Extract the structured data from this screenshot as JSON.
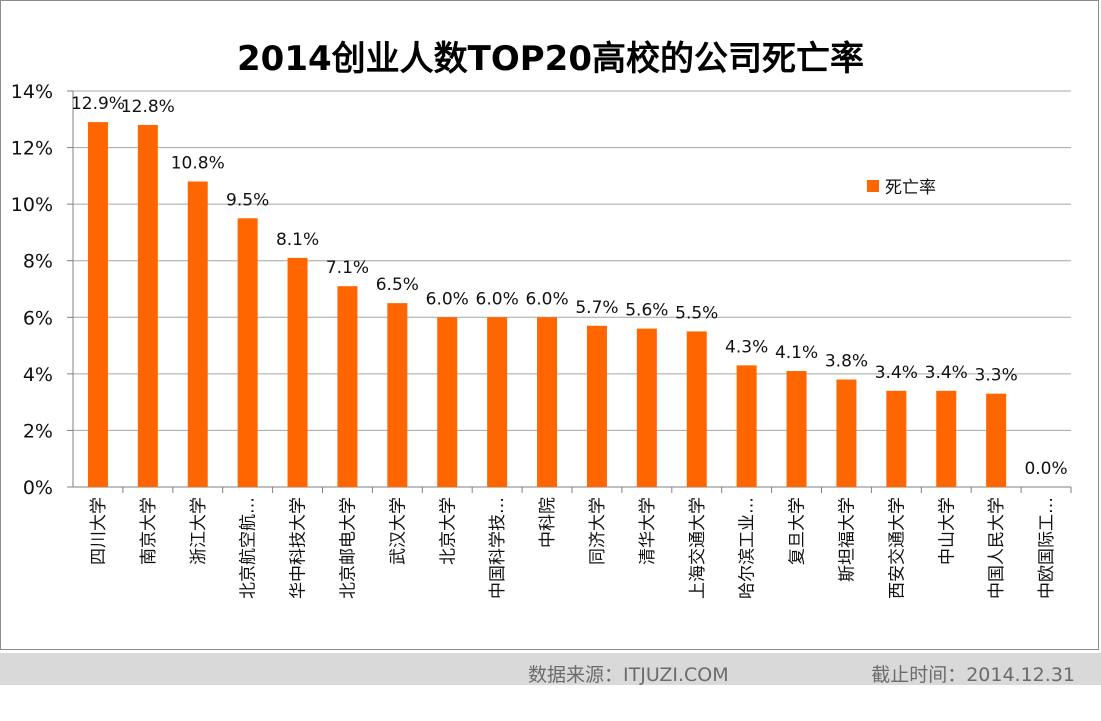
{
  "chart_data": {
    "type": "bar",
    "title": "2014创业人数TOP20高校的公司死亡率",
    "xlabel": "",
    "ylabel": "",
    "ylim": [
      0,
      14
    ],
    "y_ticks": [
      "0%",
      "2%",
      "4%",
      "6%",
      "8%",
      "10%",
      "12%",
      "14%"
    ],
    "y_tick_values": [
      0,
      2,
      4,
      6,
      8,
      10,
      12,
      14
    ],
    "grid": true,
    "legend_position": "right",
    "series": [
      {
        "name": "死亡率",
        "values": [
          12.9,
          12.8,
          10.8,
          9.5,
          8.1,
          7.1,
          6.5,
          6.0,
          6.0,
          6.0,
          5.7,
          5.6,
          5.5,
          4.3,
          4.1,
          3.8,
          3.4,
          3.4,
          3.3,
          0.0
        ],
        "labels": [
          "12.9%",
          "12.8%",
          "10.8%",
          "9.5%",
          "8.1%",
          "7.1%",
          "6.5%",
          "6.0%",
          "6.0%",
          "6.0%",
          "5.7%",
          "5.6%",
          "5.5%",
          "4.3%",
          "4.1%",
          "3.8%",
          "3.4%",
          "3.4%",
          "3.3%",
          "0.0%"
        ]
      }
    ],
    "categories": [
      "四川大学",
      "南京大学",
      "浙江大学",
      "北京航空航…",
      "华中科技大学",
      "北京邮电大学",
      "武汉大学",
      "北京大学",
      "中国科学技…",
      "中科院",
      "同济大学",
      "清华大学",
      "上海交通大学",
      "哈尔滨工业…",
      "复旦大学",
      "斯坦福大学",
      "西安交通大学",
      "中山大学",
      "中国人民大学",
      "中欧国际工…"
    ]
  },
  "colors": {
    "bar": "#ff6600",
    "grid": "#a6a6a6",
    "axis": "#808080",
    "text": "#111111",
    "footer_bg": "#d9d9d9",
    "footer_text": "#6b6b6b"
  },
  "legend": {
    "label": "死亡率"
  },
  "footer": {
    "source": "数据来源：ITJUZI.COM",
    "date": "截止时间：2014.12.31"
  }
}
